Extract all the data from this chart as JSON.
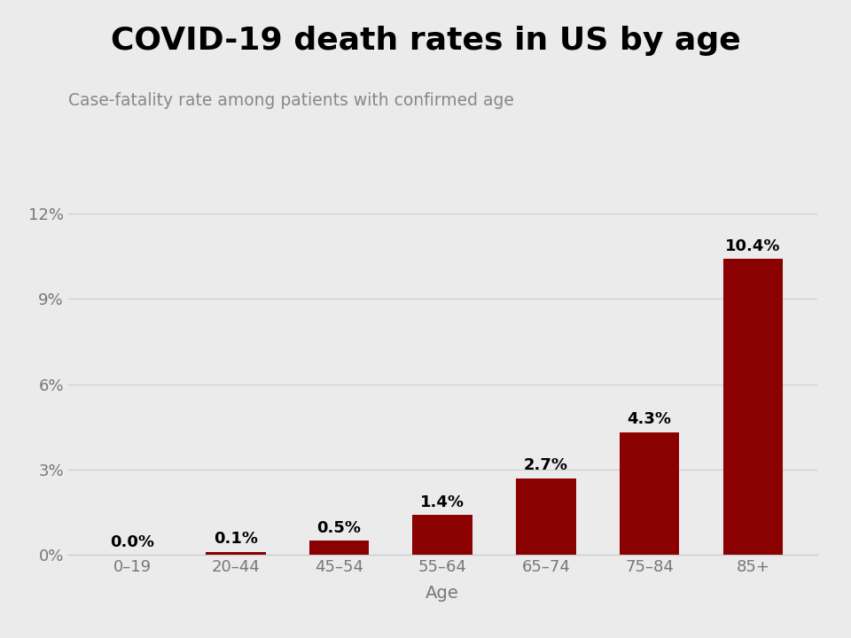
{
  "title": "COVID-19 death rates in US by age",
  "subtitle": "Case-fatality rate among patients with confirmed age",
  "xlabel": "Age",
  "categories": [
    "0–19",
    "20–44",
    "45–54",
    "55–64",
    "65–74",
    "75–84",
    "85+"
  ],
  "values": [
    0.0,
    0.1,
    0.5,
    1.4,
    2.7,
    4.3,
    10.4
  ],
  "labels": [
    "0.0%",
    "0.1%",
    "0.5%",
    "1.4%",
    "2.7%",
    "4.3%",
    "10.4%"
  ],
  "bar_color": "#8B0000",
  "background_color": "#EBEBEB",
  "title_fontsize": 26,
  "subtitle_fontsize": 13.5,
  "label_fontsize": 13,
  "tick_fontsize": 13,
  "xlabel_fontsize": 14,
  "ylim": [
    0,
    13
  ],
  "yticks": [
    0,
    3,
    6,
    9,
    12
  ],
  "ytick_labels": [
    "0%",
    "3%",
    "6%",
    "9%",
    "12%"
  ],
  "grid_color": "#CCCCCC",
  "axis_label_color": "#777777",
  "subtitle_color": "#888888"
}
